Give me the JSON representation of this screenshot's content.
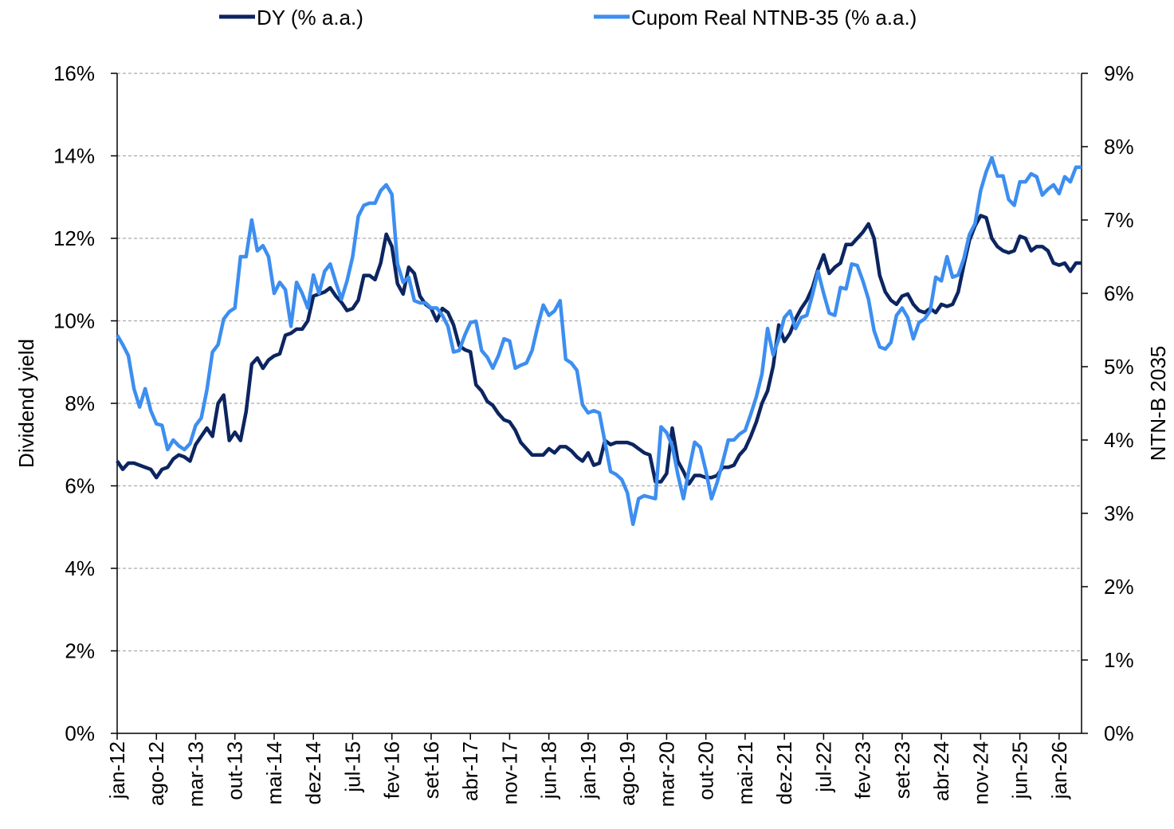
{
  "chart_data": {
    "type": "line",
    "y_label": "Dividend yield",
    "y2_label": "NTN-B 2035",
    "categories": [
      "jan-12",
      null,
      null,
      null,
      null,
      null,
      null,
      "ago-12",
      null,
      null,
      null,
      null,
      null,
      null,
      "mar-13",
      null,
      null,
      null,
      null,
      null,
      null,
      "out-13",
      null,
      null,
      null,
      null,
      null,
      null,
      "mai-14",
      null,
      null,
      null,
      null,
      null,
      null,
      "dez-14",
      null,
      null,
      null,
      null,
      null,
      null,
      "jul-15",
      null,
      null,
      null,
      null,
      null,
      null,
      "fev-16",
      null,
      null,
      null,
      null,
      null,
      null,
      "set-16",
      null,
      null,
      null,
      null,
      null,
      null,
      "abr-17",
      null,
      null,
      null,
      null,
      null,
      null,
      "nov-17",
      null,
      null,
      null,
      null,
      null,
      null,
      "jun-18",
      null,
      null,
      null,
      null,
      null,
      null,
      "jan-19",
      null,
      null,
      null,
      null,
      null,
      null,
      "ago-19",
      null,
      null,
      null,
      null,
      null,
      null,
      "mar-20",
      null,
      null,
      null,
      null,
      null,
      null,
      "out-20",
      null,
      null,
      null,
      null,
      null,
      null,
      "mai-21",
      null,
      null,
      null,
      null,
      null,
      null,
      "dez-21",
      null,
      null,
      null,
      null,
      null,
      null,
      "jul-22",
      null,
      null,
      null,
      null,
      null,
      null,
      "fev-23",
      null,
      null,
      null,
      null,
      null,
      null,
      "set-23",
      null,
      null,
      null,
      null,
      null,
      null,
      "abr-24",
      null,
      null,
      null,
      null,
      null,
      null,
      "nov-24",
      null,
      null,
      null,
      null,
      null,
      null,
      "jun-25",
      null,
      null,
      null,
      null,
      null,
      null,
      "jan-26",
      null,
      null,
      null,
      null
    ],
    "series": [
      {
        "name": "DY (% a.a.)",
        "color": "#0c2560",
        "axis": "y",
        "values": [
          6.6,
          6.4,
          6.55,
          6.55,
          6.5,
          6.45,
          6.4,
          6.2,
          6.4,
          6.45,
          6.65,
          6.75,
          6.7,
          6.6,
          7.0,
          7.2,
          7.4,
          7.2,
          8.0,
          8.2,
          7.1,
          7.3,
          7.1,
          7.8,
          8.95,
          9.1,
          8.85,
          9.05,
          9.15,
          9.2,
          9.65,
          9.7,
          9.8,
          9.8,
          10.0,
          10.6,
          10.65,
          10.7,
          10.8,
          10.6,
          10.45,
          10.25,
          10.3,
          10.5,
          11.1,
          11.1,
          11.0,
          11.4,
          12.1,
          11.8,
          10.9,
          10.65,
          11.3,
          11.15,
          10.6,
          10.4,
          10.3,
          10.0,
          10.3,
          10.2,
          9.9,
          9.4,
          9.3,
          9.25,
          8.45,
          8.3,
          8.05,
          7.95,
          7.75,
          7.6,
          7.55,
          7.35,
          7.05,
          6.9,
          6.75,
          6.75,
          6.75,
          6.9,
          6.8,
          6.95,
          6.95,
          6.85,
          6.7,
          6.6,
          6.8,
          6.5,
          6.55,
          7.1,
          7.0,
          7.05,
          7.05,
          7.05,
          7.0,
          6.9,
          6.8,
          6.75,
          6.1,
          6.1,
          6.3,
          7.4,
          6.6,
          6.35,
          6.05,
          6.25,
          6.25,
          6.2,
          6.2,
          6.25,
          6.45,
          6.45,
          6.5,
          6.75,
          6.9,
          7.2,
          7.55,
          8.0,
          8.3,
          8.9,
          9.9,
          9.5,
          9.7,
          10.05,
          10.3,
          10.5,
          10.8,
          11.25,
          11.6,
          11.15,
          11.3,
          11.4,
          11.85,
          11.85,
          12.0,
          12.15,
          12.35,
          12.0,
          11.1,
          10.7,
          10.5,
          10.4,
          10.6,
          10.65,
          10.4,
          10.25,
          10.2,
          10.3,
          10.2,
          10.4,
          10.35,
          10.4,
          10.7,
          11.35,
          11.95,
          12.3,
          12.55,
          12.5,
          12.0,
          11.8,
          11.7,
          11.65,
          11.7,
          12.05,
          12.0,
          11.7,
          11.8,
          11.8,
          11.7,
          11.4,
          11.35,
          11.4,
          11.2,
          11.4,
          11.4
        ]
      },
      {
        "name": "Cupom Real NTNB-35 (% a.a.)",
        "color": "#3d8ef0",
        "axis": "y2",
        "values": [
          5.43,
          5.3,
          5.15,
          4.7,
          4.45,
          4.7,
          4.4,
          4.22,
          4.2,
          3.87,
          4.0,
          3.92,
          3.87,
          3.95,
          4.2,
          4.3,
          4.68,
          5.2,
          5.3,
          5.65,
          5.75,
          5.8,
          6.5,
          6.5,
          7.0,
          6.58,
          6.65,
          6.5,
          6.0,
          6.15,
          6.05,
          5.55,
          6.15,
          6.0,
          5.8,
          6.25,
          6.0,
          6.3,
          6.4,
          6.15,
          5.92,
          6.17,
          6.5,
          7.05,
          7.2,
          7.23,
          7.23,
          7.4,
          7.48,
          7.35,
          6.4,
          6.15,
          6.22,
          5.9,
          5.87,
          5.87,
          5.8,
          5.8,
          5.7,
          5.55,
          5.2,
          5.22,
          5.43,
          5.6,
          5.62,
          5.22,
          5.13,
          4.98,
          5.15,
          5.38,
          5.35,
          4.98,
          5.02,
          5.05,
          5.22,
          5.55,
          5.84,
          5.7,
          5.76,
          5.9,
          5.1,
          5.05,
          4.95,
          4.48,
          4.37,
          4.4,
          4.37,
          3.97,
          3.57,
          3.53,
          3.46,
          3.28,
          2.85,
          3.2,
          3.24,
          3.22,
          3.2,
          4.18,
          4.1,
          3.92,
          3.53,
          3.2,
          3.6,
          3.97,
          3.9,
          3.58,
          3.2,
          3.42,
          3.7,
          4.0,
          4.0,
          4.08,
          4.13,
          4.35,
          4.59,
          4.9,
          5.52,
          5.16,
          5.38,
          5.67,
          5.76,
          5.52,
          5.67,
          5.7,
          5.98,
          6.3,
          6.0,
          5.73,
          5.7,
          6.08,
          6.06,
          6.4,
          6.38,
          6.17,
          5.92,
          5.49,
          5.27,
          5.24,
          5.33,
          5.7,
          5.8,
          5.67,
          5.38,
          5.6,
          5.65,
          5.76,
          6.22,
          6.17,
          6.5,
          6.22,
          6.25,
          6.47,
          6.8,
          6.95,
          7.4,
          7.66,
          7.85,
          7.6,
          7.6,
          7.28,
          7.2,
          7.52,
          7.52,
          7.63,
          7.59,
          7.34,
          7.42,
          7.48,
          7.36,
          7.59,
          7.52,
          7.72,
          7.72
        ]
      }
    ],
    "ylim": [
      0,
      16
    ],
    "yticks": [
      {
        "value": 0,
        "label": "0%"
      },
      {
        "value": 2,
        "label": "2%"
      },
      {
        "value": 4,
        "label": "4%"
      },
      {
        "value": 6,
        "label": "6%"
      },
      {
        "value": 8,
        "label": "8%"
      },
      {
        "value": 10,
        "label": "10%"
      },
      {
        "value": 12,
        "label": "12%"
      },
      {
        "value": 14,
        "label": "14%"
      },
      {
        "value": 16,
        "label": "16%"
      }
    ],
    "y2lim": [
      0,
      9
    ],
    "y2ticks": [
      {
        "value": 0,
        "label": "0%"
      },
      {
        "value": 1,
        "label": "1%"
      },
      {
        "value": 2,
        "label": "2%"
      },
      {
        "value": 3,
        "label": "3%"
      },
      {
        "value": 4,
        "label": "4%"
      },
      {
        "value": 5,
        "label": "5%"
      },
      {
        "value": 6,
        "label": "6%"
      },
      {
        "value": 7,
        "label": "7%"
      },
      {
        "value": 8,
        "label": "8%"
      },
      {
        "value": 9,
        "label": "9%"
      }
    ],
    "grid": true,
    "legend": "top"
  }
}
